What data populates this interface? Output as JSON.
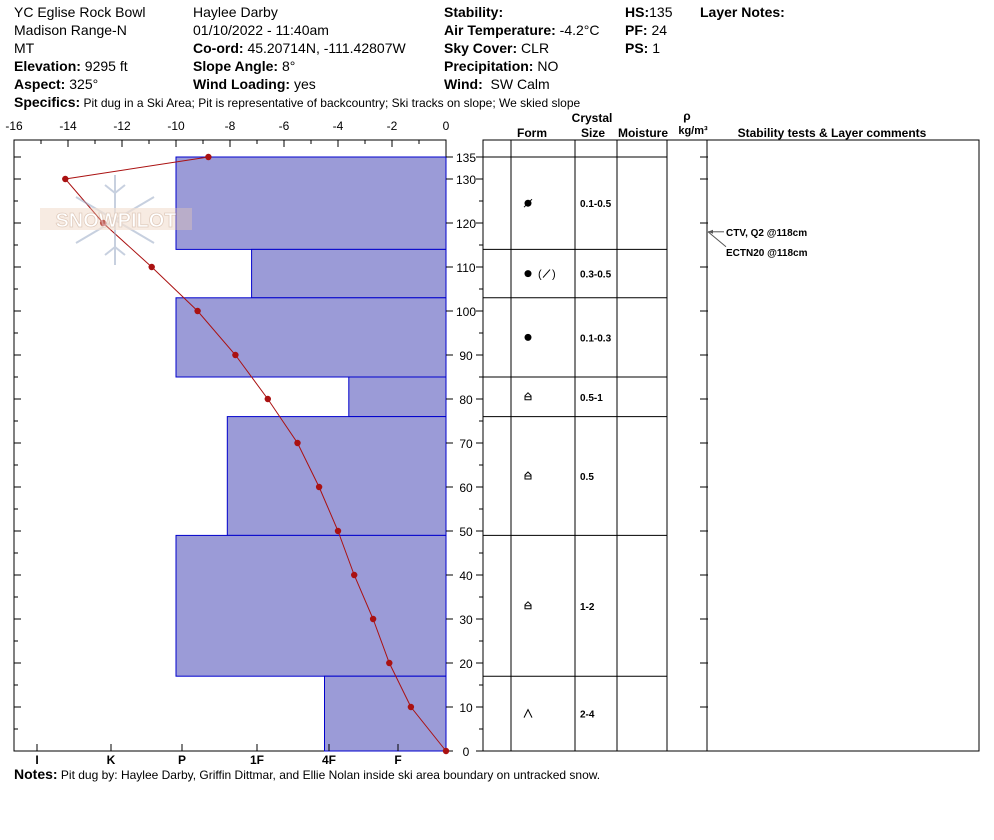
{
  "header": {
    "location": "YC Eglise Rock Bowl",
    "range": "Madison Range-N",
    "state": "MT",
    "elevation_label": "Elevation:",
    "elevation_value": "9295 ft",
    "aspect_label": "Aspect:",
    "aspect_value": "325°",
    "observer": "Haylee Darby",
    "datetime": "01/10/2022 - 11:40am",
    "coord_label": "Co-ord:",
    "coord_value": "45.20714N, -111.42807W",
    "slope_label": "Slope Angle:",
    "slope_value": "8°",
    "wind_loading_label": "Wind Loading:",
    "wind_loading_value": "yes",
    "stability_label": "Stability:",
    "air_temp_label": "Air Temperature:",
    "air_temp_value": "-4.2°C",
    "sky_label": "Sky Cover:",
    "sky_value": "CLR",
    "precip_label": "Precipitation:",
    "precip_value": "NO",
    "wind_label": "Wind:",
    "wind_value": "SW Calm",
    "hs_label": "HS:",
    "hs_value": "135",
    "pf_label": "PF:",
    "pf_value": "24",
    "ps_label": "PS:",
    "ps_value": "1",
    "layer_notes_label": "Layer Notes:"
  },
  "specifics": {
    "label": "Specifics:",
    "text": "Pit dug in a Ski Area; Pit is representative of backcountry; Ski tracks on slope; We skied slope"
  },
  "notes": {
    "label": "Notes:",
    "text": "Pit dug by: Haylee Darby, Griffin Dittmar, and Ellie Nolan inside ski area boundary on untracked snow."
  },
  "watermark": "SNOWPILOT",
  "table_headers": {
    "crystal": "Crystal",
    "form": "Form",
    "size": "Size",
    "moisture": "Moisture",
    "rho": "ρ",
    "density_unit": "kg/m³",
    "stability": "Stability tests & Layer comments"
  },
  "colors": {
    "hardness_fill": "#9b9bd7",
    "hardness_stroke": "#0000cc",
    "temperature_line": "#aa1111"
  },
  "chart_data": {
    "type": "snow-profile",
    "temperature_axis": {
      "ticks": [
        "-16",
        "-14",
        "-12",
        "-10",
        "-8",
        "-6",
        "-4",
        "-2",
        "0"
      ],
      "range": [
        -16,
        0
      ]
    },
    "hardness_axis": {
      "ticks": [
        "I",
        "K",
        "P",
        "1F",
        "4F",
        "F"
      ]
    },
    "height_axis": {
      "ticks": [
        "0",
        "10",
        "20",
        "30",
        "40",
        "50",
        "60",
        "70",
        "80",
        "90",
        "100",
        "110",
        "120",
        "130",
        "135"
      ],
      "range": [
        0,
        135
      ]
    },
    "hardness_layers": [
      {
        "top": 135,
        "bottom": 114,
        "hardness_value": -10
      },
      {
        "top": 114,
        "bottom": 103,
        "hardness_value": -7.2
      },
      {
        "top": 103,
        "bottom": 85,
        "hardness_value": -10
      },
      {
        "top": 85,
        "bottom": 76,
        "hardness_value": -3.6
      },
      {
        "top": 76,
        "bottom": 49,
        "hardness_value": -8.1
      },
      {
        "top": 49,
        "bottom": 17,
        "hardness_value": -10
      },
      {
        "top": 17,
        "bottom": 0,
        "hardness_value": -4.5
      }
    ],
    "temperature_profile": [
      {
        "height": 135,
        "temp": -8.8
      },
      {
        "height": 130,
        "temp": -14.1
      },
      {
        "height": 120,
        "temp": -12.7
      },
      {
        "height": 110,
        "temp": -10.9
      },
      {
        "height": 100,
        "temp": -9.2
      },
      {
        "height": 90,
        "temp": -7.8
      },
      {
        "height": 80,
        "temp": -6.6
      },
      {
        "height": 70,
        "temp": -5.5
      },
      {
        "height": 60,
        "temp": -4.7
      },
      {
        "height": 50,
        "temp": -4.0
      },
      {
        "height": 40,
        "temp": -3.4
      },
      {
        "height": 30,
        "temp": -2.7
      },
      {
        "height": 20,
        "temp": -2.1
      },
      {
        "height": 10,
        "temp": -1.3
      },
      {
        "height": 0,
        "temp": 0
      }
    ],
    "layers": [
      {
        "top": 135,
        "bottom": 114,
        "form": "rounding",
        "size": "0.1-0.5"
      },
      {
        "top": 114,
        "bottom": 103,
        "form": "rounded-faceted",
        "size": "0.3-0.5"
      },
      {
        "top": 103,
        "bottom": 85,
        "form": "rounded",
        "size": "0.1-0.3"
      },
      {
        "top": 85,
        "bottom": 76,
        "form": "depth-hoar",
        "size": "0.5-1"
      },
      {
        "top": 76,
        "bottom": 49,
        "form": "depth-hoar",
        "size": "0.5"
      },
      {
        "top": 49,
        "bottom": 17,
        "form": "depth-hoar",
        "size": "1-2"
      },
      {
        "top": 17,
        "bottom": 0,
        "form": "faceted",
        "size": "2-4"
      }
    ],
    "stability_tests": [
      {
        "height": 118,
        "label": "CTV, Q2 @118cm"
      },
      {
        "height": 118,
        "label": "ECTN20 @118cm"
      }
    ]
  }
}
